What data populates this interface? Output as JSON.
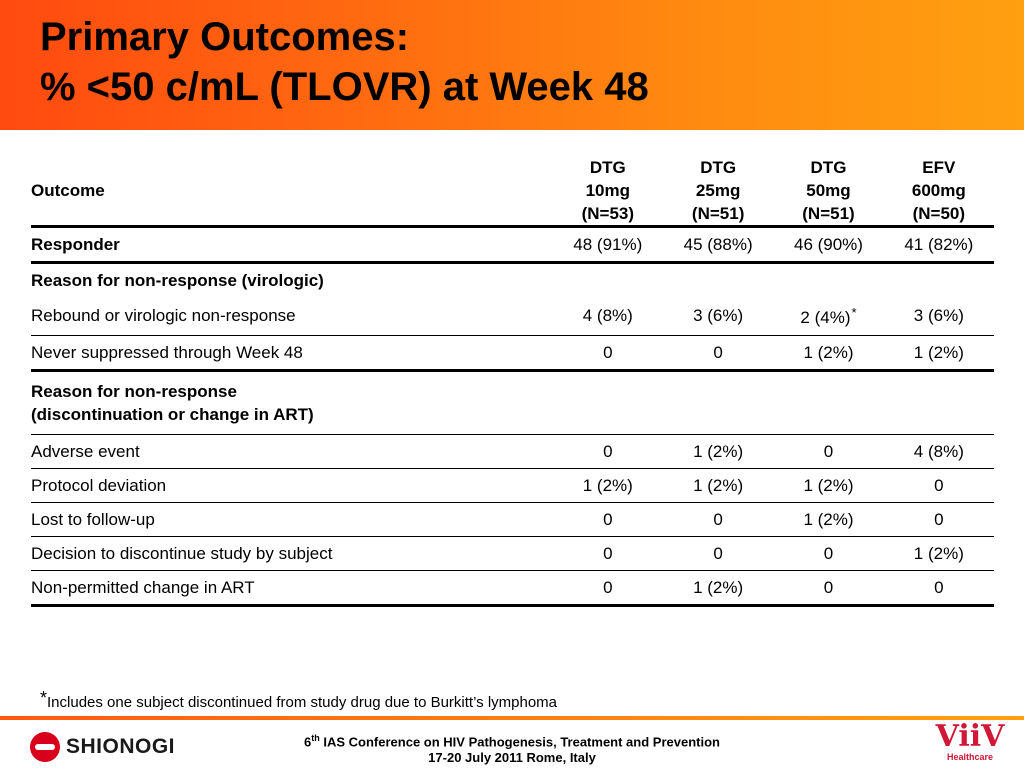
{
  "slide": {
    "title_line1": "Primary Outcomes:",
    "title_line2": "% <50 c/mL (TLOVR) at Week 48"
  },
  "table": {
    "header": {
      "outcome_label": "Outcome",
      "columns": [
        {
          "drug": "DTG",
          "dose": "10mg",
          "n": "(N=53)"
        },
        {
          "drug": "DTG",
          "dose": "25mg",
          "n": "(N=51)"
        },
        {
          "drug": "DTG",
          "dose": "50mg",
          "n": "(N=51)"
        },
        {
          "drug": "EFV",
          "dose": "600mg",
          "n": "(N=50)"
        }
      ]
    },
    "responder": {
      "label": "Responder",
      "values": [
        "48 (91%)",
        "45 (88%)",
        "46 (90%)",
        "41 (82%)"
      ]
    },
    "virologic": {
      "heading": "Reason for non-response (virologic)",
      "rows": [
        {
          "label": "Rebound or virologic non-response",
          "values": [
            "4 (8%)",
            "3 (6%)",
            "2 (4%)",
            "3 (6%)"
          ],
          "star": "*"
        },
        {
          "label": "Never suppressed through Week 48",
          "values": [
            "0",
            "0",
            "1 (2%)",
            "1 (2%)"
          ]
        }
      ]
    },
    "discontinuation": {
      "heading_line1": "Reason for non-response",
      "heading_line2": "(discontinuation or change in ART)",
      "rows": [
        {
          "label": "Adverse event",
          "values": [
            "0",
            "1 (2%)",
            "0",
            "4 (8%)"
          ]
        },
        {
          "label": "Protocol deviation",
          "values": [
            "1 (2%)",
            "1 (2%)",
            "1 (2%)",
            "0"
          ]
        },
        {
          "label": "Lost to follow-up",
          "values": [
            "0",
            "0",
            "1 (2%)",
            "0"
          ]
        },
        {
          "label": "Decision to discontinue study by subject",
          "values": [
            "0",
            "0",
            "0",
            "1 (2%)"
          ]
        },
        {
          "label": "Non-permitted change in ART",
          "values": [
            "0",
            "1 (2%)",
            "0",
            "0"
          ]
        }
      ]
    }
  },
  "footnote": {
    "star": "*",
    "text": "Includes one subject discontinued from study drug due to Burkitt’s lymphoma"
  },
  "footer": {
    "ordinal_num": "6",
    "ordinal_sup": "th",
    "conference": " IAS Conference on HIV Pathogenesis, Treatment and Prevention",
    "dates": "17-20 July 2011 Rome, Italy",
    "left_logo": "SHIONOGI",
    "right_logo": "ViiV",
    "right_logo_sub": "Healthcare"
  },
  "colors": {
    "header_gradient_start": "#ff4a10",
    "header_gradient_end": "#ffa010",
    "shionogi_red": "#d8001a",
    "viiv_red": "#d01838"
  }
}
